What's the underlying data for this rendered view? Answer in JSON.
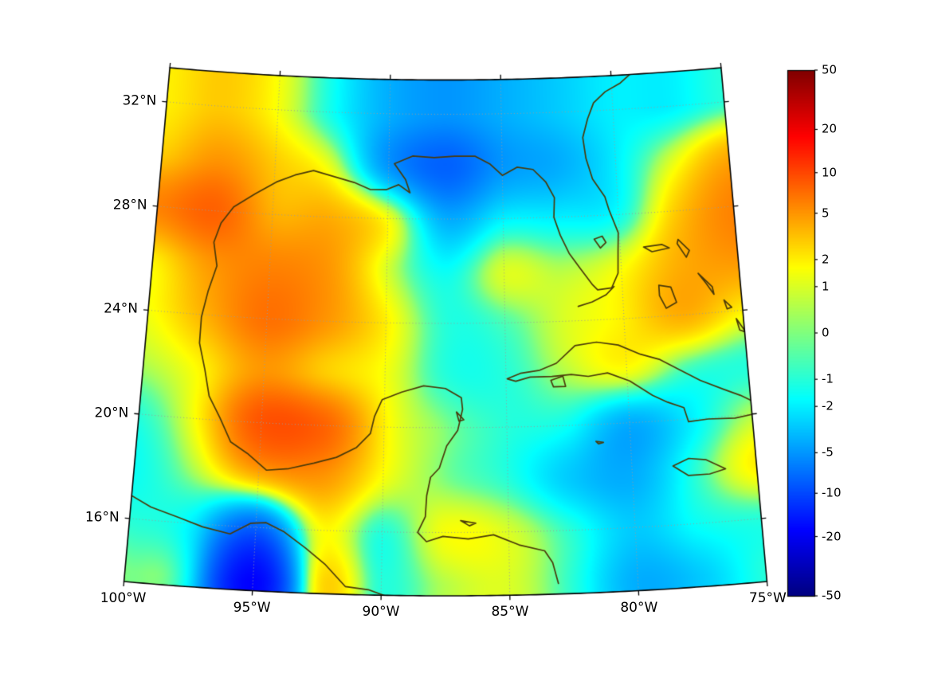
{
  "chart_data": {
    "type": "heatmap",
    "title": "",
    "projection": {
      "name": "lambert_conformal_conic",
      "central_longitude": -87.5,
      "standard_parallels": [
        17,
        31
      ]
    },
    "extent": {
      "lon_min": -100,
      "lon_max": -75,
      "lat_min": 13.6,
      "lat_max": 33.3
    },
    "x_axis": {
      "ticks": [
        {
          "value": -100,
          "label": "100°W"
        },
        {
          "value": -95,
          "label": "95°W"
        },
        {
          "value": -90,
          "label": "90°W"
        },
        {
          "value": -85,
          "label": "85°W"
        },
        {
          "value": -80,
          "label": "80°W"
        },
        {
          "value": -75,
          "label": "75°W"
        }
      ]
    },
    "y_axis": {
      "ticks": [
        {
          "value": 16,
          "label": "16°N"
        },
        {
          "value": 20,
          "label": "20°N"
        },
        {
          "value": 24,
          "label": "24°N"
        },
        {
          "value": 28,
          "label": "28°N"
        },
        {
          "value": 32,
          "label": "32°N"
        }
      ]
    },
    "grid_lines": {
      "lons": [
        -95,
        -90,
        -85,
        -80
      ],
      "lats": [
        16,
        20,
        24,
        28,
        32
      ],
      "style": "dotted",
      "color": "#9b9b9b"
    },
    "field": {
      "lons": [
        -100,
        -97.5,
        -95,
        -92.5,
        -90,
        -87.5,
        -85,
        -82.5,
        -80,
        -77.5,
        -75
      ],
      "lats": [
        14,
        16,
        18,
        20,
        22,
        24,
        26,
        28,
        30,
        32
      ],
      "values": [
        [
          0,
          -2,
          -18,
          2,
          -1,
          0.5,
          1,
          -1,
          -4,
          -3,
          -1
        ],
        [
          -1,
          -2,
          -8,
          1.5,
          -1,
          1.5,
          1,
          -1,
          -3,
          -1.5,
          -1
        ],
        [
          -1.5,
          0.5,
          4,
          5,
          1.5,
          0,
          -1,
          -3,
          -4,
          -1,
          2
        ],
        [
          -1,
          2,
          9,
          8,
          2,
          0,
          -1,
          -1.5,
          -4,
          -2,
          0.5
        ],
        [
          0.5,
          2,
          5,
          3,
          1.5,
          -1,
          -1,
          0.5,
          1.5,
          -0.5,
          -1
        ],
        [
          1.5,
          4,
          7,
          5,
          2,
          -1,
          -0.5,
          1,
          2,
          4,
          2
        ],
        [
          2,
          5,
          6,
          5,
          1,
          -1.5,
          1,
          0.5,
          1.5,
          4,
          5
        ],
        [
          6,
          8,
          4,
          4,
          1.5,
          -4,
          -2,
          -2,
          -1.5,
          3,
          6
        ],
        [
          3,
          5,
          3,
          1,
          -5,
          -8,
          -5,
          -4,
          -2,
          1,
          4
        ],
        [
          2,
          3,
          1.5,
          -1.5,
          -4,
          -5,
          -4,
          -3,
          -2,
          -2,
          -1
        ]
      ]
    },
    "colorbar": {
      "position": "right",
      "vmin": -50,
      "vmax": 50,
      "scale": "symlog_ln1p",
      "ticks": [
        {
          "value": 50,
          "label": "50"
        },
        {
          "value": 20,
          "label": "20"
        },
        {
          "value": 10,
          "label": "10"
        },
        {
          "value": 5,
          "label": "5"
        },
        {
          "value": 2,
          "label": "2"
        },
        {
          "value": 1,
          "label": "1"
        },
        {
          "value": 0,
          "label": "0"
        },
        {
          "value": -1,
          "label": "-1"
        },
        {
          "value": -2,
          "label": "-2"
        },
        {
          "value": -5,
          "label": "-5"
        },
        {
          "value": -10,
          "label": "-10"
        },
        {
          "value": -20,
          "label": "-20"
        },
        {
          "value": -50,
          "label": "-50"
        }
      ],
      "colormap": {
        "name": "jet",
        "stops": [
          [
            0,
            "#000080"
          ],
          [
            0.125,
            "#0000ff"
          ],
          [
            0.375,
            "#00ffff"
          ],
          [
            0.625,
            "#ffff00"
          ],
          [
            0.875,
            "#ff0000"
          ],
          [
            1,
            "#800000"
          ]
        ]
      }
    }
  },
  "map": {
    "coast_color": "#4a3a0a",
    "border_color": "#000000",
    "coastlines": [
      {
        "name": "pacific-coast-mexico-central-america",
        "closed": false,
        "points": [
          [
            -100.5,
            17.1
          ],
          [
            -99.2,
            16.5
          ],
          [
            -98.1,
            16.2
          ],
          [
            -97.1,
            15.9
          ],
          [
            -96,
            15.7
          ],
          [
            -95.2,
            16.15
          ],
          [
            -94.6,
            16.2
          ],
          [
            -93.9,
            15.9
          ],
          [
            -93,
            15.3
          ],
          [
            -92.2,
            14.7
          ],
          [
            -91.4,
            13.9
          ],
          [
            -90.5,
            13.8
          ],
          [
            -89.6,
            13.5
          ],
          [
            -88.6,
            13.2
          ],
          [
            -87.7,
            13
          ]
        ]
      },
      {
        "name": "gulf-caribbean-atlantic-coast",
        "closed": false,
        "points": [
          [
            -83.1,
            14
          ],
          [
            -83.3,
            14.8
          ],
          [
            -83.6,
            15.25
          ],
          [
            -84.6,
            15.5
          ],
          [
            -85.6,
            15.9
          ],
          [
            -86.6,
            15.75
          ],
          [
            -87.6,
            15.85
          ],
          [
            -88.25,
            15.65
          ],
          [
            -88.6,
            16
          ],
          [
            -88.3,
            16.6
          ],
          [
            -88.25,
            17.4
          ],
          [
            -88.1,
            18.1
          ],
          [
            -87.75,
            18.45
          ],
          [
            -87.45,
            19.3
          ],
          [
            -87,
            19.9
          ],
          [
            -86.8,
            20.7
          ],
          [
            -86.85,
            21.15
          ],
          [
            -87.5,
            21.5
          ],
          [
            -88.4,
            21.6
          ],
          [
            -89.3,
            21.35
          ],
          [
            -90.1,
            21.05
          ],
          [
            -90.4,
            20.4
          ],
          [
            -90.55,
            19.75
          ],
          [
            -91.1,
            19.2
          ],
          [
            -91.9,
            18.8
          ],
          [
            -92.8,
            18.55
          ],
          [
            -93.8,
            18.3
          ],
          [
            -94.7,
            18.2
          ],
          [
            -95.5,
            18.8
          ],
          [
            -96.2,
            19.2
          ],
          [
            -96.7,
            20.1
          ],
          [
            -97.2,
            20.9
          ],
          [
            -97.45,
            21.9
          ],
          [
            -97.75,
            22.9
          ],
          [
            -97.75,
            23.9
          ],
          [
            -97.55,
            24.9
          ],
          [
            -97.25,
            25.9
          ],
          [
            -97.45,
            26.8
          ],
          [
            -97.2,
            27.55
          ],
          [
            -96.7,
            28.2
          ],
          [
            -95.8,
            28.75
          ],
          [
            -94.9,
            29.25
          ],
          [
            -94.1,
            29.55
          ],
          [
            -93.3,
            29.75
          ],
          [
            -92.4,
            29.55
          ],
          [
            -91.5,
            29.35
          ],
          [
            -90.8,
            29.1
          ],
          [
            -90.1,
            29.1
          ],
          [
            -89.55,
            29.3
          ],
          [
            -89.05,
            29
          ],
          [
            -89.25,
            29.5
          ],
          [
            -89.75,
            30.1
          ],
          [
            -88.95,
            30.4
          ],
          [
            -88,
            30.35
          ],
          [
            -87.1,
            30.4
          ],
          [
            -86.2,
            30.4
          ],
          [
            -85.55,
            30.1
          ],
          [
            -85,
            29.65
          ],
          [
            -84.35,
            29.95
          ],
          [
            -83.65,
            29.85
          ],
          [
            -83.1,
            29.35
          ],
          [
            -82.75,
            28.75
          ],
          [
            -82.8,
            28
          ],
          [
            -82.55,
            27.3
          ],
          [
            -82.2,
            26.6
          ],
          [
            -81.75,
            26
          ],
          [
            -81.25,
            25.35
          ],
          [
            -81.05,
            25.15
          ],
          [
            -80.45,
            25.2
          ],
          [
            -80.15,
            25.75
          ],
          [
            -80.1,
            26.6
          ],
          [
            -80.05,
            27.3
          ],
          [
            -80.4,
            28.2
          ],
          [
            -80.55,
            28.7
          ],
          [
            -81.05,
            29.4
          ],
          [
            -81.3,
            30.2
          ],
          [
            -81.4,
            31
          ],
          [
            -81.15,
            31.7
          ],
          [
            -80.85,
            32.3
          ],
          [
            -80.3,
            32.7
          ],
          [
            -79.6,
            33
          ],
          [
            -79,
            33.4
          ]
        ]
      },
      {
        "name": "cuba",
        "closed": true,
        "points": [
          [
            -84.95,
            21.85
          ],
          [
            -84.4,
            22.05
          ],
          [
            -83.6,
            22.15
          ],
          [
            -82.9,
            22.4
          ],
          [
            -82.1,
            23.05
          ],
          [
            -81.2,
            23.15
          ],
          [
            -80.3,
            23
          ],
          [
            -79.4,
            22.6
          ],
          [
            -78.6,
            22.35
          ],
          [
            -77.8,
            21.9
          ],
          [
            -77,
            21.45
          ],
          [
            -76.1,
            21.05
          ],
          [
            -75.4,
            20.75
          ],
          [
            -74.6,
            20.3
          ],
          [
            -74.9,
            20
          ],
          [
            -75.7,
            19.9
          ],
          [
            -76.8,
            19.95
          ],
          [
            -77.6,
            19.9
          ],
          [
            -77.75,
            20.45
          ],
          [
            -78.4,
            20.7
          ],
          [
            -79,
            21
          ],
          [
            -79.9,
            21.6
          ],
          [
            -80.8,
            21.95
          ],
          [
            -81.6,
            21.85
          ],
          [
            -82.3,
            21.95
          ],
          [
            -83.1,
            21.9
          ],
          [
            -84,
            21.9
          ],
          [
            -84.6,
            21.75
          ]
        ]
      },
      {
        "name": "isla-de-la-juventud",
        "closed": true,
        "points": [
          [
            -83.15,
            21.75
          ],
          [
            -82.65,
            21.9
          ],
          [
            -82.55,
            21.5
          ],
          [
            -83.05,
            21.5
          ]
        ]
      },
      {
        "name": "jamaica",
        "closed": true,
        "points": [
          [
            -78.35,
            18.25
          ],
          [
            -77.7,
            18.5
          ],
          [
            -77,
            18.4
          ],
          [
            -76.25,
            18
          ],
          [
            -76.9,
            17.85
          ],
          [
            -77.75,
            17.85
          ]
        ]
      },
      {
        "name": "grand-bahama",
        "closed": true,
        "points": [
          [
            -79,
            26.7
          ],
          [
            -78.2,
            26.75
          ],
          [
            -77.9,
            26.6
          ],
          [
            -78.65,
            26.5
          ]
        ]
      },
      {
        "name": "abaco",
        "closed": true,
        "points": [
          [
            -77.5,
            26.9
          ],
          [
            -77.05,
            26.45
          ],
          [
            -77.2,
            26.2
          ],
          [
            -77.55,
            26.75
          ]
        ]
      },
      {
        "name": "andros",
        "closed": true,
        "points": [
          [
            -78.45,
            25.2
          ],
          [
            -77.95,
            25.1
          ],
          [
            -77.75,
            24.5
          ],
          [
            -78.2,
            24.3
          ],
          [
            -78.45,
            24.8
          ]
        ]
      },
      {
        "name": "eleuthera",
        "closed": true,
        "points": [
          [
            -76.75,
            25.55
          ],
          [
            -76.2,
            25
          ],
          [
            -76.15,
            24.7
          ],
          [
            -76.45,
            25.15
          ]
        ]
      },
      {
        "name": "long-island-bahamas",
        "closed": true,
        "points": [
          [
            -75.3,
            23.7
          ],
          [
            -74.95,
            23.15
          ],
          [
            -75.2,
            23.25
          ]
        ]
      },
      {
        "name": "cat-island",
        "closed": true,
        "points": [
          [
            -75.75,
            24.45
          ],
          [
            -75.45,
            24.15
          ],
          [
            -75.65,
            24.1
          ]
        ]
      },
      {
        "name": "florida-keys",
        "closed": false,
        "points": [
          [
            -81.9,
            24.55
          ],
          [
            -81.3,
            24.7
          ],
          [
            -80.7,
            24.95
          ],
          [
            -80.35,
            25.25
          ]
        ]
      },
      {
        "name": "cozumel",
        "closed": true,
        "points": [
          [
            -87.05,
            20.6
          ],
          [
            -86.75,
            20.3
          ],
          [
            -86.95,
            20.25
          ]
        ]
      },
      {
        "name": "roatan",
        "closed": true,
        "points": [
          [
            -86.9,
            16.45
          ],
          [
            -86.3,
            16.35
          ],
          [
            -86.55,
            16.25
          ]
        ]
      },
      {
        "name": "cayman",
        "closed": true,
        "points": [
          [
            -81.4,
            19.35
          ],
          [
            -81.1,
            19.3
          ],
          [
            -81.3,
            19.25
          ]
        ]
      },
      {
        "name": "lake-okeechobee",
        "closed": true,
        "points": [
          [
            -81.1,
            27.1
          ],
          [
            -80.75,
            27.2
          ],
          [
            -80.6,
            26.95
          ],
          [
            -80.85,
            26.75
          ]
        ]
      }
    ]
  }
}
